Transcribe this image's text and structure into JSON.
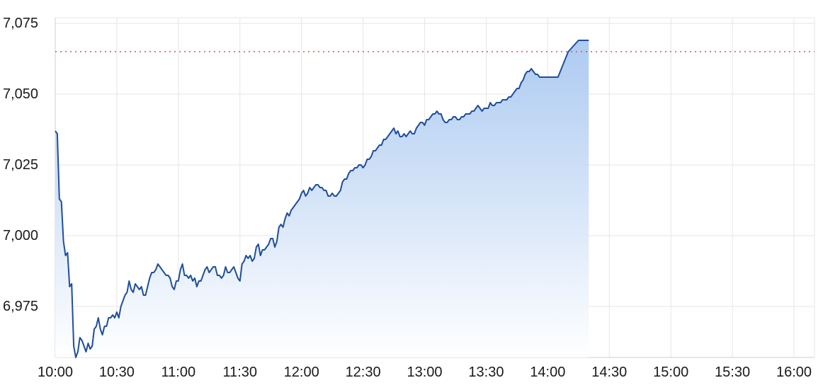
{
  "chart_data": {
    "type": "area",
    "title": "",
    "xlabel": "",
    "ylabel": "",
    "x_tick_labels": [
      "10:00",
      "10:30",
      "11:00",
      "11:30",
      "12:00",
      "12:30",
      "13:00",
      "13:30",
      "14:00",
      "14:30",
      "15:00",
      "15:30",
      "16:00"
    ],
    "y_tick_labels": [
      "6,975",
      "7,000",
      "7,025",
      "7,050",
      "7,075"
    ],
    "y_ticks": [
      6975,
      7000,
      7025,
      7050,
      7075
    ],
    "xlim": [
      "10:00",
      "16:10"
    ],
    "ylim": [
      6957,
      7077
    ],
    "reference_line": {
      "value": 7065,
      "color": "#d9534f",
      "style": "dotted"
    },
    "grid": true,
    "colors": {
      "line": "#1f4e9c",
      "area_top": "#a9c8f0",
      "area_bottom": "#ffffff"
    },
    "series": [
      {
        "values": [
          [
            "10:00",
            7037
          ],
          [
            "10:01",
            7036
          ],
          [
            "10:02",
            7013
          ],
          [
            "10:03",
            7012
          ],
          [
            "10:04",
            6998
          ],
          [
            "10:05",
            6993
          ],
          [
            "10:06",
            6994
          ],
          [
            "10:07",
            6982
          ],
          [
            "10:08",
            6983
          ],
          [
            "10:09",
            6961
          ],
          [
            "10:10",
            6957
          ],
          [
            "10:11",
            6959
          ],
          [
            "10:12",
            6964
          ],
          [
            "10:13",
            6963
          ],
          [
            "10:14",
            6961
          ],
          [
            "10:15",
            6959
          ],
          [
            "10:16",
            6962
          ],
          [
            "10:17",
            6960
          ],
          [
            "10:18",
            6961
          ],
          [
            "10:19",
            6967
          ],
          [
            "10:20",
            6968
          ],
          [
            "10:21",
            6971
          ],
          [
            "10:22",
            6967
          ],
          [
            "10:23",
            6965
          ],
          [
            "10:24",
            6968
          ],
          [
            "10:25",
            6968
          ],
          [
            "10:26",
            6971
          ],
          [
            "10:27",
            6971
          ],
          [
            "10:28",
            6972
          ],
          [
            "10:29",
            6971
          ],
          [
            "10:30",
            6973
          ],
          [
            "10:31",
            6971
          ],
          [
            "10:32",
            6975
          ],
          [
            "10:33",
            6977
          ],
          [
            "10:34",
            6979
          ],
          [
            "10:35",
            6980
          ],
          [
            "10:36",
            6984
          ],
          [
            "10:37",
            6981
          ],
          [
            "10:38",
            6980
          ],
          [
            "10:39",
            6983
          ],
          [
            "10:40",
            6982
          ],
          [
            "10:41",
            6981
          ],
          [
            "10:42",
            6982
          ],
          [
            "10:43",
            6979
          ],
          [
            "10:44",
            6979
          ],
          [
            "10:45",
            6982
          ],
          [
            "10:46",
            6985
          ],
          [
            "10:47",
            6987
          ],
          [
            "10:48",
            6987
          ],
          [
            "10:49",
            6988
          ],
          [
            "10:50",
            6990
          ],
          [
            "10:51",
            6989
          ],
          [
            "10:52",
            6988
          ],
          [
            "10:53",
            6987
          ],
          [
            "10:54",
            6986
          ],
          [
            "10:55",
            6986
          ],
          [
            "10:56",
            6985
          ],
          [
            "10:57",
            6982
          ],
          [
            "10:58",
            6981
          ],
          [
            "10:59",
            6984
          ],
          [
            "11:00",
            6984
          ],
          [
            "11:01",
            6988
          ],
          [
            "11:02",
            6990
          ],
          [
            "11:03",
            6986
          ],
          [
            "11:04",
            6986
          ],
          [
            "11:05",
            6985
          ],
          [
            "11:06",
            6986
          ],
          [
            "11:07",
            6984
          ],
          [
            "11:08",
            6985
          ],
          [
            "11:09",
            6982
          ],
          [
            "11:10",
            6984
          ],
          [
            "11:11",
            6984
          ],
          [
            "11:12",
            6986
          ],
          [
            "11:13",
            6988
          ],
          [
            "11:14",
            6989
          ],
          [
            "11:15",
            6987
          ],
          [
            "11:16",
            6988
          ],
          [
            "11:17",
            6989
          ],
          [
            "11:18",
            6989
          ],
          [
            "11:19",
            6986
          ],
          [
            "11:20",
            6986
          ],
          [
            "11:21",
            6985
          ],
          [
            "11:22",
            6986
          ],
          [
            "11:23",
            6989
          ],
          [
            "11:24",
            6987
          ],
          [
            "11:25",
            6987
          ],
          [
            "11:26",
            6988
          ],
          [
            "11:27",
            6989
          ],
          [
            "11:28",
            6987
          ],
          [
            "11:29",
            6985
          ],
          [
            "11:30",
            6984
          ],
          [
            "11:31",
            6990
          ],
          [
            "11:32",
            6991
          ],
          [
            "11:33",
            6993
          ],
          [
            "11:34",
            6992
          ],
          [
            "11:35",
            6993
          ],
          [
            "11:36",
            6991
          ],
          [
            "11:37",
            6992
          ],
          [
            "11:38",
            6996
          ],
          [
            "11:39",
            6997
          ],
          [
            "11:40",
            6993
          ],
          [
            "11:41",
            6995
          ],
          [
            "11:42",
            6995
          ],
          [
            "11:43",
            6996
          ],
          [
            "11:44",
            6997
          ],
          [
            "11:45",
            6999
          ],
          [
            "11:46",
            6999
          ],
          [
            "11:47",
            6996
          ],
          [
            "11:48",
            6998
          ],
          [
            "11:49",
            7003
          ],
          [
            "11:50",
            7004
          ],
          [
            "11:51",
            7003
          ],
          [
            "11:52",
            7006
          ],
          [
            "11:53",
            7008
          ],
          [
            "11:54",
            7007
          ],
          [
            "11:55",
            7009
          ],
          [
            "11:56",
            7010
          ],
          [
            "11:57",
            7011
          ],
          [
            "11:58",
            7012
          ],
          [
            "11:59",
            7013
          ],
          [
            "12:00",
            7015
          ],
          [
            "12:01",
            7016
          ],
          [
            "12:02",
            7014
          ],
          [
            "12:03",
            7015
          ],
          [
            "12:04",
            7017
          ],
          [
            "12:05",
            7016
          ],
          [
            "12:06",
            7017
          ],
          [
            "12:07",
            7018
          ],
          [
            "12:08",
            7018
          ],
          [
            "12:09",
            7017
          ],
          [
            "12:10",
            7017
          ],
          [
            "12:11",
            7016
          ],
          [
            "12:12",
            7016
          ],
          [
            "12:13",
            7014
          ],
          [
            "12:14",
            7014
          ],
          [
            "12:15",
            7015
          ],
          [
            "12:16",
            7014
          ],
          [
            "12:17",
            7014
          ],
          [
            "12:18",
            7015
          ],
          [
            "12:19",
            7016
          ],
          [
            "12:20",
            7019
          ],
          [
            "12:21",
            7020
          ],
          [
            "12:22",
            7020
          ],
          [
            "12:23",
            7022
          ],
          [
            "12:24",
            7023
          ],
          [
            "12:25",
            7023
          ],
          [
            "12:26",
            7024
          ],
          [
            "12:27",
            7024
          ],
          [
            "12:28",
            7025
          ],
          [
            "12:29",
            7025
          ],
          [
            "12:30",
            7024
          ],
          [
            "12:31",
            7025
          ],
          [
            "12:32",
            7027
          ],
          [
            "12:33",
            7027
          ],
          [
            "12:34",
            7028
          ],
          [
            "12:35",
            7030
          ],
          [
            "12:36",
            7030
          ],
          [
            "12:37",
            7031
          ],
          [
            "12:38",
            7032
          ],
          [
            "12:39",
            7032
          ],
          [
            "12:40",
            7034
          ],
          [
            "12:41",
            7034
          ],
          [
            "12:42",
            7035
          ],
          [
            "12:43",
            7036
          ],
          [
            "12:44",
            7037
          ],
          [
            "12:45",
            7038
          ],
          [
            "12:46",
            7036
          ],
          [
            "12:47",
            7037
          ],
          [
            "12:48",
            7035
          ],
          [
            "12:49",
            7035
          ],
          [
            "12:50",
            7036
          ],
          [
            "12:51",
            7035
          ],
          [
            "12:52",
            7036
          ],
          [
            "12:53",
            7037
          ],
          [
            "12:54",
            7036
          ],
          [
            "12:55",
            7036
          ],
          [
            "12:56",
            7038
          ],
          [
            "12:57",
            7039
          ],
          [
            "12:58",
            7040
          ],
          [
            "12:59",
            7040
          ],
          [
            "13:00",
            7039
          ],
          [
            "13:01",
            7041
          ],
          [
            "13:02",
            7041
          ],
          [
            "13:03",
            7042
          ],
          [
            "13:04",
            7043
          ],
          [
            "13:05",
            7043
          ],
          [
            "13:06",
            7044
          ],
          [
            "13:07",
            7043
          ],
          [
            "13:08",
            7043
          ],
          [
            "13:09",
            7041
          ],
          [
            "13:10",
            7040
          ],
          [
            "13:11",
            7040
          ],
          [
            "13:12",
            7041
          ],
          [
            "13:13",
            7041
          ],
          [
            "13:14",
            7042
          ],
          [
            "13:15",
            7042
          ],
          [
            "13:16",
            7041
          ],
          [
            "13:17",
            7041
          ],
          [
            "13:18",
            7042
          ],
          [
            "13:19",
            7042
          ],
          [
            "13:20",
            7043
          ],
          [
            "13:21",
            7043
          ],
          [
            "13:22",
            7043
          ],
          [
            "13:23",
            7044
          ],
          [
            "13:24",
            7044
          ],
          [
            "13:25",
            7045
          ],
          [
            "13:26",
            7046
          ],
          [
            "13:27",
            7045
          ],
          [
            "13:28",
            7044
          ],
          [
            "13:29",
            7045
          ],
          [
            "13:30",
            7045
          ],
          [
            "13:31",
            7045
          ],
          [
            "13:32",
            7047
          ],
          [
            "13:33",
            7046
          ],
          [
            "13:34",
            7046
          ],
          [
            "13:35",
            7047
          ],
          [
            "13:36",
            7047
          ],
          [
            "13:37",
            7047
          ],
          [
            "13:38",
            7048
          ],
          [
            "13:39",
            7048
          ],
          [
            "13:40",
            7048
          ],
          [
            "13:41",
            7049
          ],
          [
            "13:42",
            7049
          ],
          [
            "13:43",
            7050
          ],
          [
            "13:44",
            7051
          ],
          [
            "13:45",
            7052
          ],
          [
            "13:46",
            7052
          ],
          [
            "13:47",
            7054
          ],
          [
            "13:48",
            7055
          ],
          [
            "13:49",
            7057
          ],
          [
            "13:50",
            7058
          ],
          [
            "13:51",
            7058
          ],
          [
            "13:52",
            7059
          ],
          [
            "13:53",
            7058
          ],
          [
            "13:54",
            7057
          ],
          [
            "13:55",
            7057
          ],
          [
            "13:56",
            7056
          ],
          [
            "13:57",
            7056
          ],
          [
            "13:58",
            7056
          ],
          [
            "14:00",
            7056
          ],
          [
            "14:05",
            7056
          ],
          [
            "14:10",
            7065
          ],
          [
            "14:15",
            7069
          ],
          [
            "14:20",
            7069
          ]
        ]
      }
    ]
  }
}
